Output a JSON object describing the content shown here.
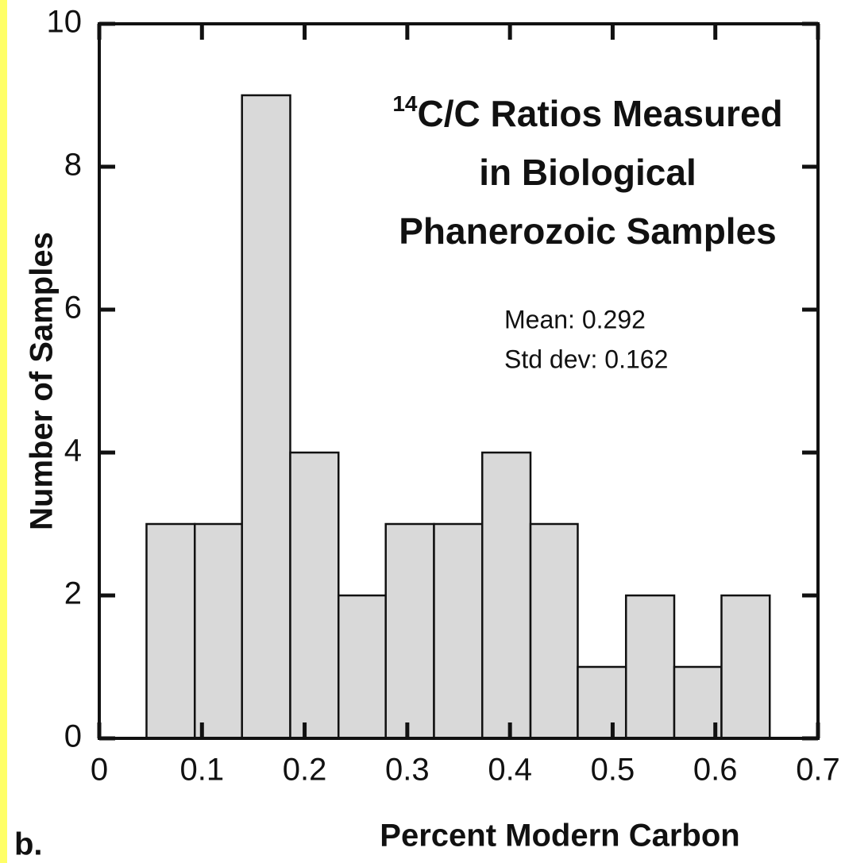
{
  "chart_data": {
    "type": "histogram",
    "title_superscript": "14",
    "title_lines": [
      "C/C Ratios Measured",
      "in Biological",
      "Phanerozoic Samples"
    ],
    "annotations": [
      "Mean: 0.292",
      "Std dev: 0.162"
    ],
    "panel_label": "b.",
    "x_label": "Percent Modern Carbon",
    "y_label": "Number of Samples",
    "bins": [
      0.046,
      0.093,
      0.139,
      0.186,
      0.233,
      0.279,
      0.326,
      0.373,
      0.42,
      0.466,
      0.513,
      0.56,
      0.606,
      0.653
    ],
    "values": [
      3,
      3,
      9,
      4,
      2,
      3,
      3,
      4,
      3,
      1,
      2,
      1,
      2
    ],
    "color": "#d9d9d9",
    "xlim": [
      0,
      0.7
    ],
    "xticks": [
      0,
      0.1,
      0.2,
      0.3,
      0.4,
      0.5,
      0.6,
      0.7
    ],
    "ylim": [
      0,
      10
    ],
    "yticks": [
      0,
      2,
      4,
      6,
      8,
      10
    ]
  }
}
